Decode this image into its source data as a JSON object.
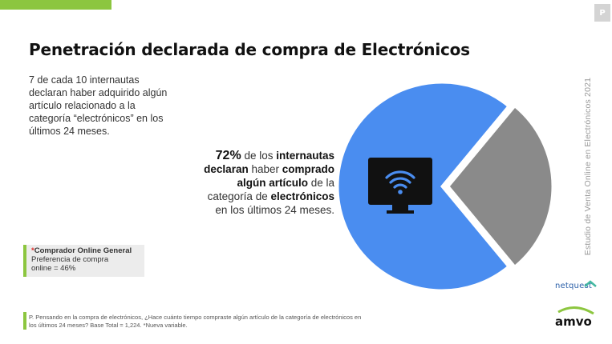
{
  "page_tag": "P",
  "title": "Penetración declarada de compra de Electrónicos",
  "intro": "7 de cada 10 internautas declaran haber adquirido algún artículo relacionado a la categoría “electrónicos” en los últimos 24 meses.",
  "highlight": {
    "pct": "72%",
    "t1": " de los ",
    "b1": "internautas declaran",
    "t2": " haber ",
    "b2": "comprado algún artículo",
    "t3": " de la categoría de ",
    "b3": "electrónicos",
    "t4": " en los últimos 24 meses."
  },
  "side_text": "Estudio de Venta Online en Electrónicos 2021",
  "callout": {
    "star": "*",
    "title": "Comprador Online General",
    "line1": "Preferencia de compra",
    "line2": "online = 46%"
  },
  "footnote": "P. Pensando en la compra de electrónicos, ¿Hace cuánto tiempo compraste algún artículo de la categoría de electrónicos en los últimos 24 meses? Base Total = 1,224. *Nueva variable.",
  "logos": {
    "netquest": "netquest",
    "amvo": "amvo"
  },
  "icon": "wifi-monitor-icon",
  "colors": {
    "accent_green": "#8cc63f",
    "pie_blue": "#4a8df0",
    "pie_gray": "#8a8a8a"
  },
  "chart_data": {
    "type": "pie",
    "title": "",
    "slices": [
      {
        "label": "",
        "value": 72,
        "color": "#4a8df0"
      },
      {
        "label": "",
        "value": 28,
        "color": "#8a8a8a"
      }
    ]
  }
}
